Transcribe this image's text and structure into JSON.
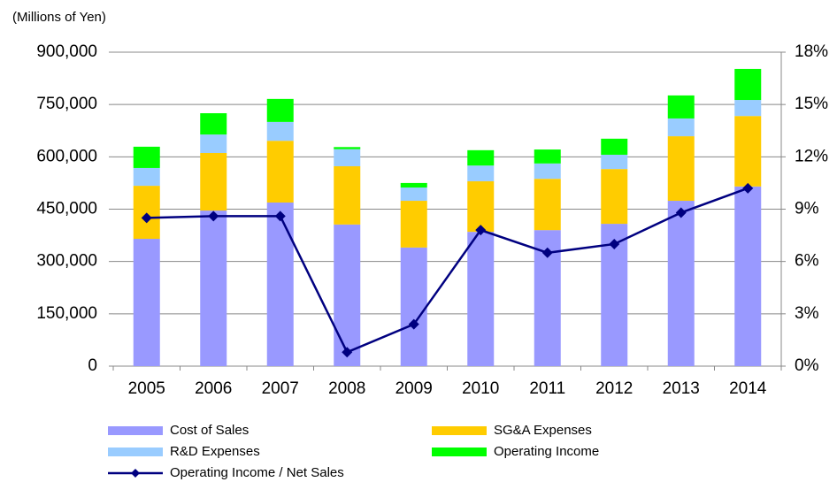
{
  "chart_data": {
    "type": "bar",
    "title": "(Millions of  Yen)",
    "categories": [
      "2005",
      "2006",
      "2007",
      "2008",
      "2009",
      "2010",
      "2011",
      "2012",
      "2013",
      "2014"
    ],
    "series": [
      {
        "name": "Cost of Sales",
        "color": "#9999ff",
        "values": [
          365000,
          446000,
          469000,
          406000,
          340000,
          385000,
          390000,
          408000,
          474000,
          515000
        ]
      },
      {
        "name": "SG&A Expenses",
        "color": "#ffcc00",
        "values": [
          152000,
          165000,
          177000,
          167000,
          134000,
          145000,
          147000,
          157000,
          185000,
          202000
        ]
      },
      {
        "name": "R&D Expenses",
        "color": "#99ccff",
        "values": [
          51000,
          53000,
          54000,
          49000,
          38000,
          45000,
          44000,
          41000,
          51000,
          46000
        ]
      },
      {
        "name": "Operating Income",
        "color": "#00ff00",
        "values": [
          61000,
          61000,
          66000,
          6000,
          13000,
          44000,
          40000,
          46000,
          66000,
          89000
        ]
      },
      {
        "name": "Operating Income / Net Sales",
        "color": "#000080",
        "type": "line",
        "axis": "y2",
        "values": [
          8.5,
          8.6,
          8.6,
          0.8,
          2.4,
          7.8,
          6.5,
          7.0,
          8.8,
          10.2
        ]
      }
    ],
    "stacked": true,
    "ylim": [
      0,
      900000
    ],
    "yticks": [
      0,
      {
        "value": 150000,
        "label": "150,000"
      },
      {
        "value": 300000,
        "label": "300,000"
      },
      {
        "value": 450000,
        "label": "450,000"
      },
      {
        "value": 600000,
        "label": "600,000"
      },
      {
        "value": 750000,
        "label": "750,000"
      },
      {
        "value": 900000,
        "label": "900,000"
      }
    ],
    "y2lim": [
      0,
      18
    ],
    "y2ticks": [
      {
        "value": 0,
        "label": "0%"
      },
      {
        "value": 3,
        "label": "3%"
      },
      {
        "value": 6,
        "label": "6%"
      },
      {
        "value": 9,
        "label": "9%"
      },
      {
        "value": 12,
        "label": "12%"
      },
      {
        "value": 15,
        "label": "15%"
      },
      {
        "value": 18,
        "label": "18%"
      }
    ],
    "grid": true,
    "legend": "bottom"
  }
}
